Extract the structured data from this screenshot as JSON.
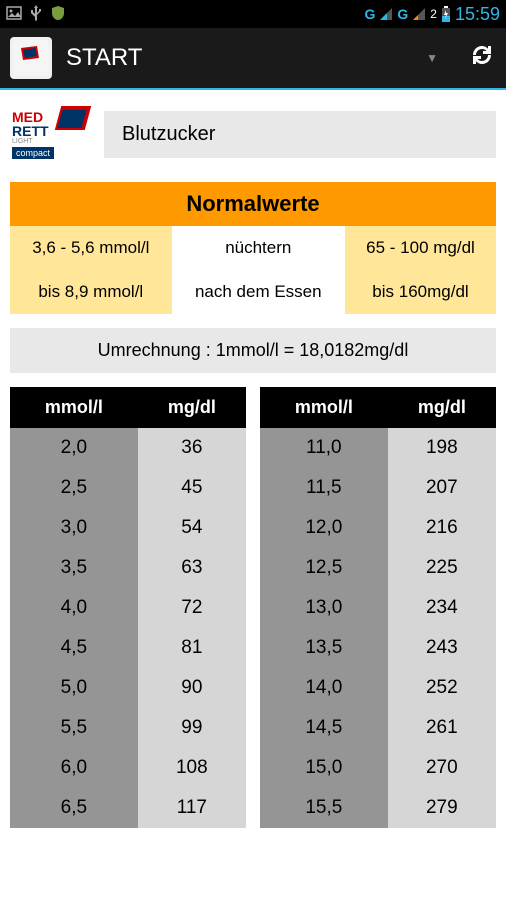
{
  "status_bar": {
    "time": "15:59",
    "signal1_label": "G",
    "signal2_label": "G",
    "battery_level": "2"
  },
  "action_bar": {
    "title": "START"
  },
  "header": {
    "logo_line1": "MED",
    "logo_line2": "RETT",
    "logo_badge": "compact",
    "page_title": "Blutzucker"
  },
  "normal_values": {
    "title": "Normalwerte",
    "rows": [
      {
        "left": "3,6 - 5,6 mmol/l",
        "mid": "nüchtern",
        "right": "65 - 100 mg/dl"
      },
      {
        "left": "bis 8,9 mmol/l",
        "mid": "nach dem Essen",
        "right": "bis 160mg/dl"
      }
    ]
  },
  "conversion_note": "Umrechnung : 1mmol/l = 18,0182mg/dl",
  "table_headers": {
    "mmol": "mmol/l",
    "mgdl": "mg/dl"
  },
  "left_table": [
    {
      "mmol": "2,0",
      "mgdl": "36"
    },
    {
      "mmol": "2,5",
      "mgdl": "45"
    },
    {
      "mmol": "3,0",
      "mgdl": "54"
    },
    {
      "mmol": "3,5",
      "mgdl": "63"
    },
    {
      "mmol": "4,0",
      "mgdl": "72"
    },
    {
      "mmol": "4,5",
      "mgdl": "81"
    },
    {
      "mmol": "5,0",
      "mgdl": "90"
    },
    {
      "mmol": "5,5",
      "mgdl": "99"
    },
    {
      "mmol": "6,0",
      "mgdl": "108"
    },
    {
      "mmol": "6,5",
      "mgdl": "117"
    }
  ],
  "right_table": [
    {
      "mmol": "11,0",
      "mgdl": "198"
    },
    {
      "mmol": "11,5",
      "mgdl": "207"
    },
    {
      "mmol": "12,0",
      "mgdl": "216"
    },
    {
      "mmol": "12,5",
      "mgdl": "225"
    },
    {
      "mmol": "13,0",
      "mgdl": "234"
    },
    {
      "mmol": "13,5",
      "mgdl": "243"
    },
    {
      "mmol": "14,0",
      "mgdl": "252"
    },
    {
      "mmol": "14,5",
      "mgdl": "261"
    },
    {
      "mmol": "15,0",
      "mgdl": "270"
    },
    {
      "mmol": "15,5",
      "mgdl": "279"
    }
  ],
  "colors": {
    "status_bg": "#000000",
    "accent": "#33b5e5",
    "action_bg": "#1a1a1a",
    "orange": "#ff9900",
    "yellow": "#ffe699",
    "gray_bar": "#e8e8e8",
    "col_dark": "#959595",
    "col_light": "#d6d6d6"
  }
}
